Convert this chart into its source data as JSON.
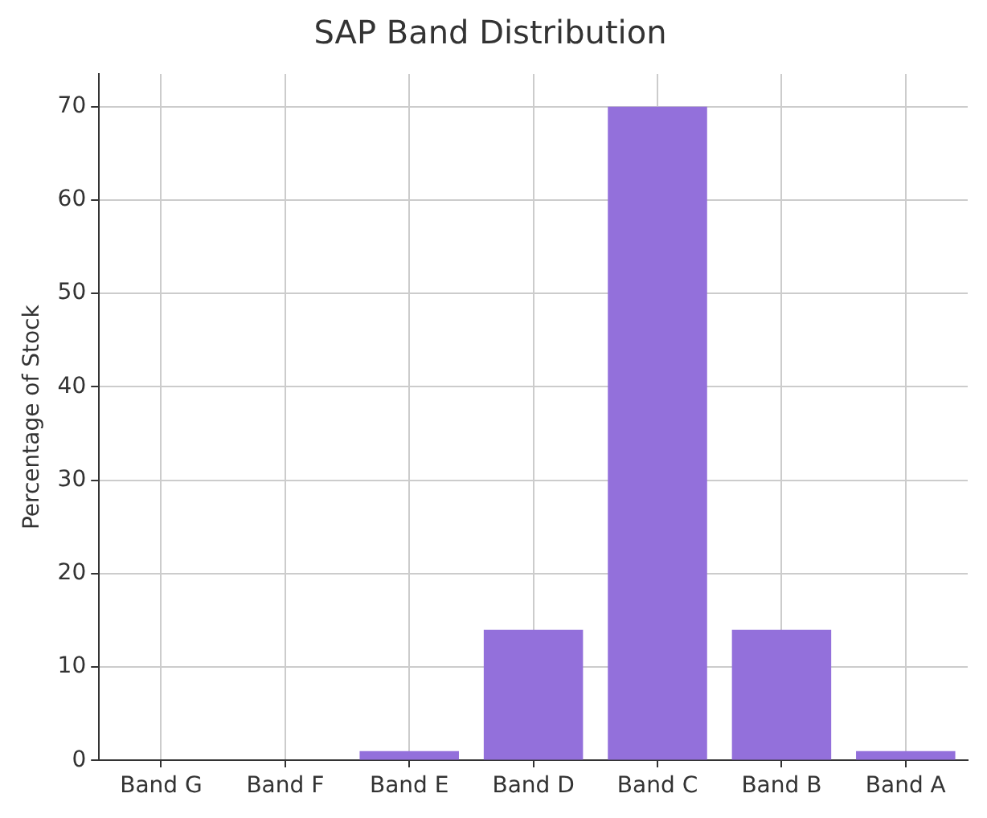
{
  "chart_data": {
    "type": "bar",
    "title": "SAP Band Distribution",
    "ylabel": "Percentage of Stock",
    "categories": [
      "Band G",
      "Band F",
      "Band E",
      "Band D",
      "Band C",
      "Band B",
      "Band A"
    ],
    "values": [
      0,
      0,
      1,
      14,
      70,
      14,
      1
    ],
    "color": "#9370db",
    "ylim": [
      0,
      73.5
    ],
    "yticks": [
      0,
      10,
      20,
      30,
      40,
      50,
      60,
      70
    ],
    "grid": true
  }
}
